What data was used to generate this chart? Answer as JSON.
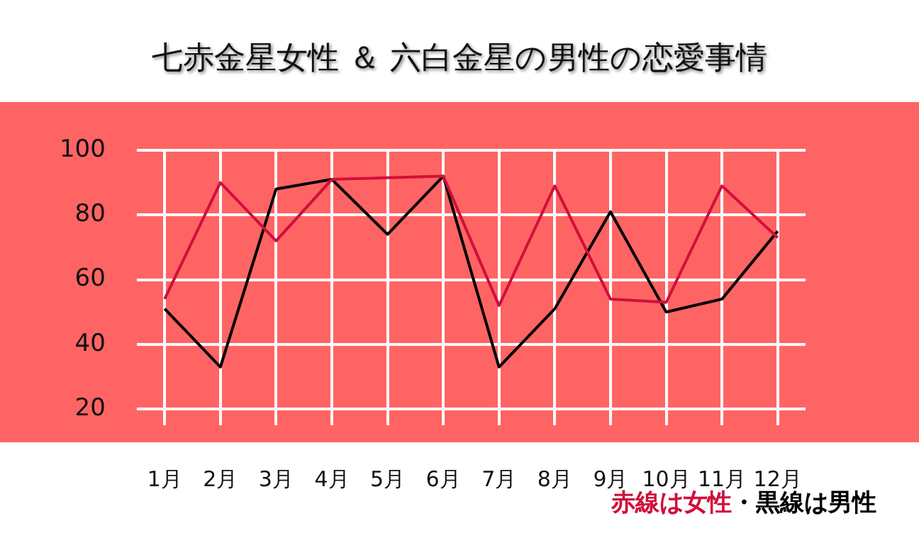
{
  "chart_data": {
    "type": "line",
    "title": "七赤金星女性 ＆ 六白金星の男性の恋愛事情",
    "categories": [
      "1月",
      "2月",
      "3月",
      "4月",
      "5月",
      "6月",
      "7月",
      "8月",
      "9月",
      "10月",
      "11月",
      "12月"
    ],
    "series": [
      {
        "color": "#d0103a",
        "values": [
          54,
          90,
          72,
          91,
          91.5,
          92,
          52,
          89,
          54,
          53,
          89,
          73
        ]
      },
      {
        "color": "#000000",
        "values": [
          51,
          33,
          88,
          91,
          74,
          92,
          33,
          51,
          81,
          50,
          54,
          75
        ]
      }
    ],
    "ylim": [
      15,
      100
    ],
    "yticks": [
      20,
      40,
      60,
      80,
      100
    ],
    "grid": true,
    "legend": false,
    "marker": "none",
    "line_style": "solid",
    "annotations": [
      "赤線は女性",
      "・黒線は男性"
    ]
  }
}
